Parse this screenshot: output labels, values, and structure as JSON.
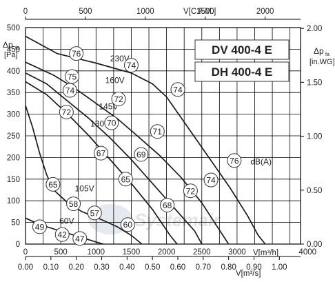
{
  "chart_data": {
    "type": "line",
    "models": [
      "DV 400-4 E",
      "DH 400-4 E"
    ],
    "watermark": "Systemair",
    "x_axes": {
      "bottom_m3h": {
        "unit": "V[m³/h]",
        "range": [
          0,
          4000
        ],
        "ticks": [
          "0",
          "500",
          "1000",
          "1500",
          "2000",
          "2500",
          "3000",
          "4000"
        ]
      },
      "bottom_m3s": {
        "unit": "V[m³/s]",
        "range": [
          0,
          1.1111
        ],
        "ticks": [
          "0.00",
          "0.10",
          "0.20",
          "0.30",
          "0.40",
          "0.50",
          "0.60",
          "0.70",
          "0.80",
          "0.90",
          "1.00"
        ]
      },
      "top_cfm": {
        "unit": "V[C.F.M.]",
        "range": [
          0,
          2354
        ],
        "ticks": [
          "0",
          "500",
          "1000",
          "1500",
          "2000"
        ]
      }
    },
    "y_axes": {
      "left_pa": {
        "label": "Δpfa",
        "unit": "[Pa]",
        "range": [
          0,
          500
        ],
        "ticks": [
          "0",
          "50",
          "100",
          "150",
          "200",
          "250",
          "300",
          "350",
          "400",
          "450",
          "500"
        ]
      },
      "right_inwg": {
        "label": "Δpfa",
        "unit": "[in.WG]",
        "range": [
          0,
          2.0
        ],
        "ticks": [
          "0.00",
          "0.50",
          "1.00",
          "1.50",
          "2.00"
        ]
      }
    },
    "series": [
      {
        "name": "230V",
        "points": [
          [
            0,
            480
          ],
          [
            450,
            440
          ],
          [
            1000,
            418
          ],
          [
            1500,
            395
          ],
          [
            1800,
            370
          ],
          [
            2000,
            340
          ],
          [
            2300,
            270
          ],
          [
            2600,
            200
          ],
          [
            2900,
            130
          ],
          [
            3150,
            65
          ],
          [
            3300,
            20
          ],
          [
            3400,
            0
          ]
        ]
      },
      {
        "name": "160V",
        "points": [
          [
            0,
            420
          ],
          [
            400,
            390
          ],
          [
            700,
            360
          ],
          [
            1000,
            325
          ],
          [
            1300,
            290
          ],
          [
            1550,
            255
          ],
          [
            1900,
            205
          ],
          [
            2200,
            155
          ],
          [
            2500,
            95
          ],
          [
            2700,
            45
          ],
          [
            2880,
            0
          ]
        ]
      },
      {
        "name": "145V",
        "points": [
          [
            0,
            395
          ],
          [
            300,
            370
          ],
          [
            600,
            330
          ],
          [
            900,
            290
          ],
          [
            1200,
            245
          ],
          [
            1500,
            195
          ],
          [
            1800,
            140
          ],
          [
            2100,
            85
          ],
          [
            2400,
            30
          ],
          [
            2500,
            0
          ]
        ]
      },
      {
        "name": "130V",
        "points": [
          [
            0,
            375
          ],
          [
            300,
            345
          ],
          [
            600,
            300
          ],
          [
            900,
            250
          ],
          [
            1200,
            195
          ],
          [
            1500,
            140
          ],
          [
            1800,
            80
          ],
          [
            2050,
            20
          ],
          [
            2150,
            0
          ]
        ]
      },
      {
        "name": "105V",
        "points": [
          [
            0,
            320
          ],
          [
            100,
            270
          ],
          [
            200,
            210
          ],
          [
            300,
            160
          ],
          [
            400,
            125
          ],
          [
            600,
            95
          ],
          [
            800,
            75
          ],
          [
            1100,
            55
          ],
          [
            1300,
            40
          ],
          [
            1500,
            20
          ],
          [
            1650,
            0
          ]
        ]
      },
      {
        "name": "60V",
        "points": [
          [
            0,
            60
          ],
          [
            200,
            45
          ],
          [
            400,
            35
          ],
          [
            600,
            25
          ],
          [
            800,
            15
          ],
          [
            1000,
            5
          ],
          [
            1100,
            0
          ]
        ]
      }
    ],
    "labels": [
      {
        "text": "230V",
        "x": 1200,
        "y": 428
      },
      {
        "text": "160V",
        "x": 1130,
        "y": 378
      },
      {
        "text": "145V",
        "x": 1040,
        "y": 318
      },
      {
        "text": "130V",
        "x": 920,
        "y": 278
      },
      {
        "text": "105V",
        "x": 700,
        "y": 128
      },
      {
        "text": "60V",
        "x": 480,
        "y": 53
      },
      {
        "text": "dB(A)",
        "x": 3190,
        "y": 190
      }
    ],
    "sound_markers": [
      {
        "value": "76",
        "x": 720,
        "y": 440
      },
      {
        "value": "74",
        "x": 1500,
        "y": 413
      },
      {
        "value": "74",
        "x": 2160,
        "y": 357
      },
      {
        "value": "76",
        "x": 2960,
        "y": 193
      },
      {
        "value": "75",
        "x": 660,
        "y": 387
      },
      {
        "value": "74",
        "x": 630,
        "y": 355
      },
      {
        "value": "72",
        "x": 1320,
        "y": 335
      },
      {
        "value": "71",
        "x": 1870,
        "y": 260
      },
      {
        "value": "74",
        "x": 2630,
        "y": 148
      },
      {
        "value": "72",
        "x": 580,
        "y": 305
      },
      {
        "value": "70",
        "x": 1220,
        "y": 280
      },
      {
        "value": "69",
        "x": 1640,
        "y": 207
      },
      {
        "value": "72",
        "x": 2340,
        "y": 123
      },
      {
        "value": "67",
        "x": 1070,
        "y": 210
      },
      {
        "value": "65",
        "x": 1420,
        "y": 150
      },
      {
        "value": "68",
        "x": 2010,
        "y": 90
      },
      {
        "value": "65",
        "x": 390,
        "y": 138
      },
      {
        "value": "58",
        "x": 680,
        "y": 93
      },
      {
        "value": "57",
        "x": 980,
        "y": 72
      },
      {
        "value": "60",
        "x": 1450,
        "y": 45
      },
      {
        "value": "49",
        "x": 200,
        "y": 40
      },
      {
        "value": "42",
        "x": 520,
        "y": 22
      },
      {
        "value": "47",
        "x": 770,
        "y": 13
      }
    ]
  }
}
